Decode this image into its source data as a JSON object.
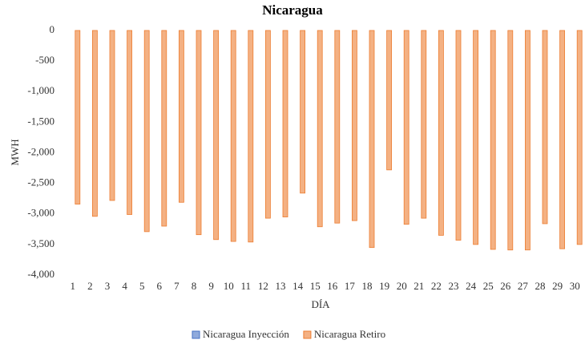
{
  "chart_data": {
    "type": "bar",
    "title": "Nicaragua",
    "x_label": "DÍA",
    "y_label": "MWH",
    "categories": [
      "1",
      "2",
      "3",
      "4",
      "5",
      "6",
      "7",
      "8",
      "9",
      "10",
      "11",
      "12",
      "13",
      "14",
      "15",
      "16",
      "17",
      "18",
      "19",
      "20",
      "21",
      "22",
      "23",
      "24",
      "25",
      "26",
      "27",
      "28",
      "29",
      "30"
    ],
    "series": [
      {
        "name": "Nicaragua Inyección",
        "color": "#4472c4",
        "values": [
          0,
          0,
          0,
          0,
          0,
          0,
          0,
          0,
          0,
          0,
          0,
          0,
          0,
          0,
          0,
          0,
          0,
          0,
          0,
          0,
          0,
          0,
          0,
          0,
          0,
          0,
          0,
          0,
          0,
          0
        ]
      },
      {
        "name": "Nicaragua Retiro",
        "color": "#ed7d31",
        "values": [
          -2840,
          -3040,
          -2780,
          -3010,
          -3290,
          -3200,
          -2810,
          -3340,
          -3420,
          -3450,
          -3460,
          -3070,
          -3050,
          -2660,
          -3210,
          -3150,
          -3110,
          -3550,
          -2280,
          -3170,
          -3070,
          -3350,
          -3430,
          -3500,
          -3580,
          -3590,
          -3590,
          -3160,
          -3570,
          -3500
        ]
      }
    ],
    "ylim": [
      -4000,
      0
    ],
    "yticks": [
      0,
      -500,
      {
        "value": -1000,
        "label": "-1,000"
      },
      {
        "value": -1500,
        "label": "-1,500"
      },
      {
        "value": -2000,
        "label": "-2,000"
      },
      {
        "value": -2500,
        "label": "-2,500"
      },
      {
        "value": -3000,
        "label": "-3,000"
      },
      {
        "value": -3500,
        "label": "-3,500"
      },
      {
        "value": -4000,
        "label": "-4,000"
      }
    ],
    "grid": false,
    "legend": "bottom"
  }
}
